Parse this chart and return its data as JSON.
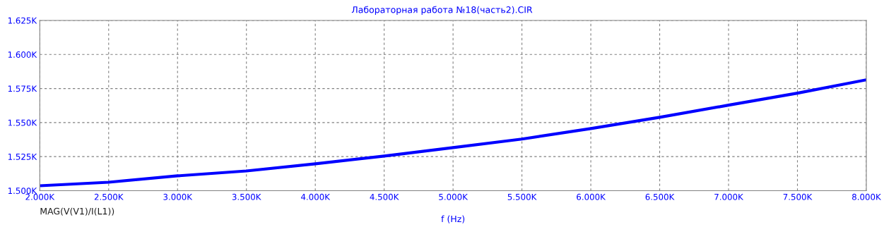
{
  "chart_data": {
    "type": "line",
    "subtitle": "Лабораторная работа №18(часть2).CIR",
    "xlabel": "f (Hz)",
    "annotations": [
      "MAG(V(V1)/I(L1))"
    ],
    "x": [
      2000,
      2500,
      3000,
      3500,
      4000,
      4500,
      5000,
      5500,
      6000,
      6500,
      7000,
      7500,
      8000
    ],
    "series": [
      {
        "color": "#0000ff",
        "values": [
          1503.6,
          1506.2,
          1510.9,
          1514.5,
          1519.7,
          1525.4,
          1531.6,
          1537.9,
          1545.6,
          1553.9,
          1562.8,
          1571.6,
          1581.4
        ]
      }
    ],
    "xlim": [
      2000,
      8000
    ],
    "xticks": [
      {
        "value": 2000,
        "label": "2.000K"
      },
      {
        "value": 2500,
        "label": "2.500K"
      },
      {
        "value": 3000,
        "label": "3.000K"
      },
      {
        "value": 3500,
        "label": "3.500K"
      },
      {
        "value": 4000,
        "label": "4.000K"
      },
      {
        "value": 4500,
        "label": "4.500K"
      },
      {
        "value": 5000,
        "label": "5.000K"
      },
      {
        "value": 5500,
        "label": "5.500K"
      },
      {
        "value": 6000,
        "label": "6.000K"
      },
      {
        "value": 6500,
        "label": "6.500K"
      },
      {
        "value": 7000,
        "label": "7.000K"
      },
      {
        "value": 7500,
        "label": "7.500K"
      },
      {
        "value": 8000,
        "label": "8.000K"
      }
    ],
    "ylim": [
      1500,
      1625
    ],
    "yticks": [
      {
        "value": 1500,
        "label": "1.500K"
      },
      {
        "value": 1525,
        "label": "1.525K"
      },
      {
        "value": 1550,
        "label": "1.550K"
      },
      {
        "value": 1575,
        "label": "1.575K"
      },
      {
        "value": 1600,
        "label": "1.600K"
      },
      {
        "value": 1625,
        "label": "1.625K"
      }
    ],
    "grid": true,
    "line_style": "solid",
    "marker": "none"
  }
}
